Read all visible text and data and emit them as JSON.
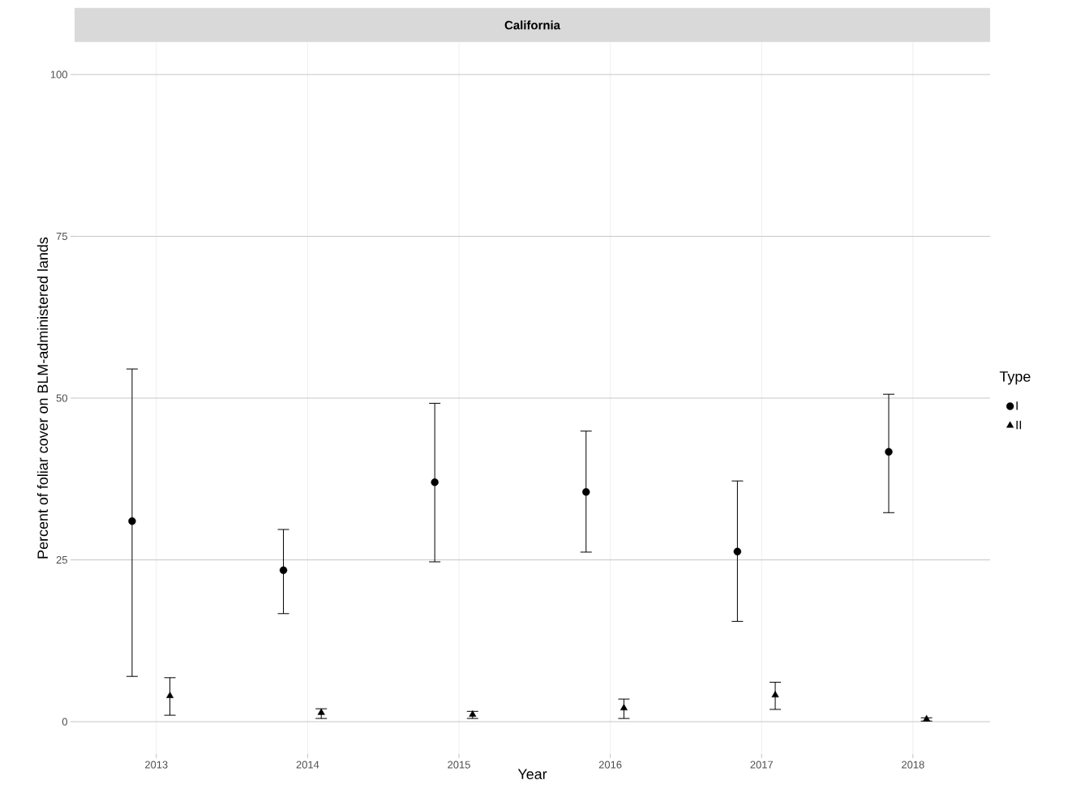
{
  "chart_data": {
    "type": "scatter",
    "title": "California",
    "xlabel": "Year",
    "ylabel": "Percent of foliar cover on BLM-administered lands",
    "legend_title": "Type",
    "legend": "right",
    "grid": true,
    "categories": [
      "2013",
      "2014",
      "2015",
      "2016",
      "2017",
      "2018"
    ],
    "ylim": [
      -5,
      105
    ],
    "yticks": [
      0,
      25,
      50,
      75,
      100
    ],
    "series": [
      {
        "name": "I",
        "color": "#000000",
        "marker": "circle",
        "values": [
          31.0,
          23.4,
          37.0,
          35.5,
          26.3,
          41.7
        ],
        "errors": [
          [
            7.0,
            54.5
          ],
          [
            16.7,
            29.7
          ],
          [
            24.7,
            49.2
          ],
          [
            26.2,
            44.9
          ],
          [
            15.5,
            37.2
          ],
          [
            32.3,
            50.6
          ]
        ]
      },
      {
        "name": "II",
        "color": "#000000",
        "marker": "triangle",
        "values": [
          4.0,
          1.4,
          1.1,
          2.1,
          4.1,
          0.4
        ],
        "errors": [
          [
            1.0,
            6.8
          ],
          [
            0.5,
            2.0
          ],
          [
            0.5,
            1.6
          ],
          [
            0.5,
            3.5
          ],
          [
            1.9,
            6.1
          ],
          [
            0.1,
            0.6
          ]
        ]
      }
    ]
  }
}
